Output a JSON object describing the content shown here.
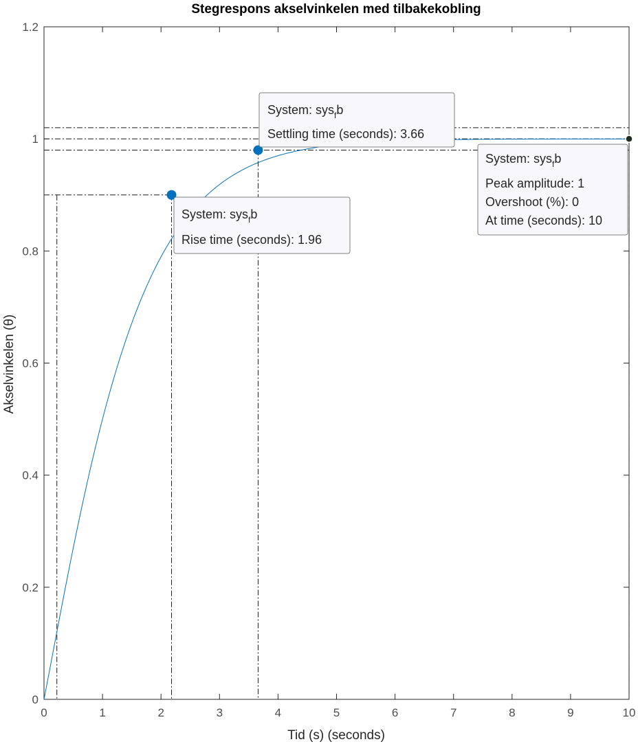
{
  "chart_data": {
    "type": "line",
    "title": "Stegrespons akselvinkelen med tilbakekobling",
    "xlabel": "Tid (s) (seconds)",
    "ylabel": "Akselvinkelen (θ)",
    "xlim": [
      0,
      10
    ],
    "ylim": [
      0,
      1.2
    ],
    "xticks": [
      0,
      1,
      2,
      3,
      4,
      5,
      6,
      7,
      8,
      9,
      10
    ],
    "yticks": [
      0,
      0.2,
      0.4,
      0.6,
      0.8,
      1,
      1.2
    ],
    "xtick_labels": [
      "0",
      "1",
      "2",
      "3",
      "4",
      "5",
      "6",
      "7",
      "8",
      "9",
      "10"
    ],
    "ytick_labels": [
      "0",
      "0.2",
      "0.4",
      "0.6",
      "0.8",
      "1",
      "1.2"
    ],
    "grid": false,
    "series": [
      {
        "color": "#0072bd",
        "x": [
          0,
          0.05,
          0.1,
          0.15,
          0.2,
          0.25,
          0.3,
          0.4,
          0.5,
          0.6,
          0.7,
          0.8,
          0.9,
          1.0,
          1.1,
          1.2,
          1.3,
          1.4,
          1.5,
          1.6,
          1.7,
          1.8,
          1.9,
          2.0,
          2.2,
          2.4,
          2.6,
          2.8,
          3.0,
          3.2,
          3.4,
          3.66,
          4.0,
          4.5,
          5.0,
          5.5,
          6.0,
          7.0,
          8.0,
          9.0,
          10.0
        ],
        "y": [
          0,
          0.011,
          0.034,
          0.062,
          0.093,
          0.124,
          0.155,
          0.215,
          0.272,
          0.325,
          0.374,
          0.419,
          0.46,
          0.498,
          0.533,
          0.565,
          0.594,
          0.621,
          0.646,
          0.668,
          0.689,
          0.708,
          0.726,
          0.742,
          0.9,
          0.917,
          0.932,
          0.945,
          0.956,
          0.965,
          0.972,
          0.98,
          0.987,
          0.993,
          0.996,
          0.998,
          0.999,
          1.0,
          1.0,
          1.0,
          1.0
        ]
      }
    ],
    "reference_lines": {
      "horizontal": [
        0.9,
        0.98,
        1.0,
        1.02
      ],
      "vertical": [
        0.22,
        2.18,
        3.66,
        10
      ]
    },
    "markers": [
      {
        "x": 2.18,
        "y": 0.9,
        "color": "#0072bd"
      },
      {
        "x": 3.66,
        "y": 0.98,
        "color": "#0072bd"
      },
      {
        "x": 10,
        "y": 1.0,
        "color": "#1f2d1f"
      }
    ]
  },
  "datatips": {
    "rise": {
      "system_prefix": "System: sys",
      "system_sub": "f",
      "system_suffix": "b",
      "line2": "Rise time (seconds): 1.96"
    },
    "settling": {
      "system_prefix": "System: sys",
      "system_sub": "f",
      "system_suffix": "b",
      "line2": "Settling time (seconds): 3.66"
    },
    "peak": {
      "system_prefix": "System: sys",
      "system_sub": "f",
      "system_suffix": "b",
      "line2": "Peak amplitude: 1",
      "line3": "Overshoot (%): 0",
      "line4": "At time (seconds): 10"
    }
  }
}
